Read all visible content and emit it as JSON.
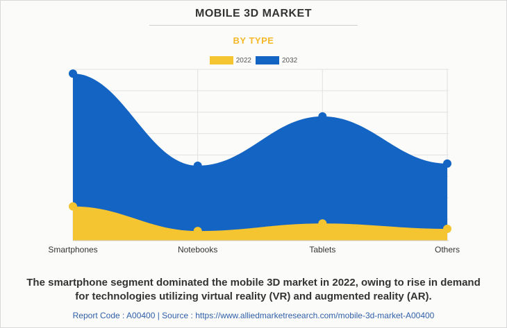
{
  "chart_data": {
    "type": "area",
    "title": "MOBILE 3D MARKET",
    "subtitle": "BY TYPE",
    "categories": [
      "Smartphones",
      "Notebooks",
      "Tablets",
      "Others"
    ],
    "series": [
      {
        "name": "2022",
        "values": [
          1.6,
          0.45,
          0.8,
          0.55
        ],
        "color": "#f5c431"
      },
      {
        "name": "2032",
        "values": [
          7.8,
          3.5,
          5.8,
          3.6
        ],
        "color": "#1464c3"
      }
    ],
    "ylim": [
      0,
      8
    ],
    "xlabel": "",
    "ylabel": "",
    "grid": true,
    "legend": "top-center"
  },
  "footer": {
    "line1": "The smartphone segment dominated the mobile 3D market in 2022, owing to rise in demand",
    "line2": "for technologies utilizing virtual reality (VR) and augmented reality (AR).",
    "source": "Report Code : A00400  |  Source : https://www.alliedmarketresearch.com/mobile-3d-market-A00400"
  }
}
